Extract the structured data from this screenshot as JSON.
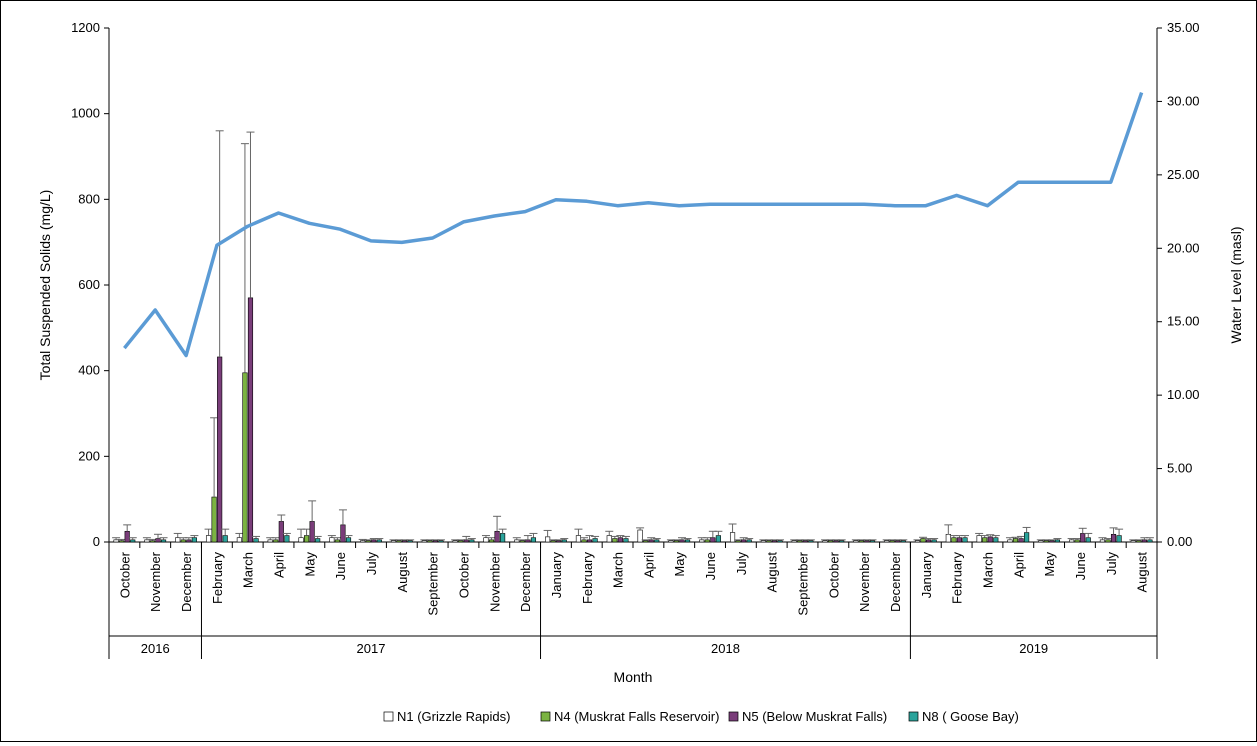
{
  "chart_data": {
    "type": "bar",
    "ylabel": "Total Suspended Solids (mg/L)",
    "y2label": "Water Level (masl)",
    "xlabel": "Month",
    "ylim": [
      0,
      1200
    ],
    "y2lim": [
      0,
      35
    ],
    "yticks": [
      "0",
      "200",
      "400",
      "600",
      "800",
      "1000",
      "1200"
    ],
    "y2ticks": [
      "0.00",
      "5.00",
      "10.00",
      "15.00",
      "20.00",
      "25.00",
      "30.00",
      "35.00"
    ],
    "categories": [
      "October",
      "November",
      "December",
      "February",
      "March",
      "April",
      "May",
      "June",
      "July",
      "August",
      "September",
      "October",
      "November",
      "December",
      "January",
      "February",
      "March",
      "April",
      "May",
      "June",
      "July",
      "August",
      "September",
      "October",
      "November",
      "December",
      "January",
      "February",
      "March",
      "April",
      "May",
      "June",
      "July",
      "August"
    ],
    "years": [
      {
        "label": "2016",
        "start": 0,
        "end": 2
      },
      {
        "label": "2017",
        "start": 3,
        "end": 13
      },
      {
        "label": "2018",
        "start": 14,
        "end": 25
      },
      {
        "label": "2019",
        "start": 26,
        "end": 33
      }
    ],
    "series": [
      {
        "name": "N1 (Grizzle Rapids)",
        "color": "#ffffff",
        "values": [
          5,
          5,
          10,
          15,
          10,
          5,
          10,
          10,
          3,
          3,
          3,
          3,
          10,
          5,
          12,
          15,
          15,
          28,
          3,
          5,
          22,
          3,
          3,
          3,
          3,
          3,
          3,
          18,
          15,
          5,
          3,
          5,
          5,
          3
        ],
        "errors": [
          5,
          5,
          10,
          15,
          10,
          5,
          20,
          5,
          3,
          2,
          2,
          2,
          5,
          5,
          15,
          15,
          10,
          5,
          2,
          5,
          20,
          2,
          2,
          2,
          2,
          2,
          2,
          22,
          5,
          5,
          2,
          3,
          5,
          2
        ]
      },
      {
        "name": "N4 (Muskrat Falls Reservoir)",
        "color": "#7bb342",
        "values": [
          3,
          3,
          5,
          105,
          395,
          5,
          15,
          5,
          3,
          3,
          3,
          3,
          5,
          3,
          3,
          5,
          8,
          3,
          3,
          5,
          3,
          3,
          3,
          3,
          3,
          3,
          8,
          10,
          10,
          8,
          3,
          5,
          5,
          3
        ],
        "errors": [
          3,
          3,
          5,
          185,
          535,
          5,
          15,
          5,
          2,
          2,
          2,
          2,
          5,
          2,
          2,
          5,
          5,
          2,
          2,
          5,
          2,
          2,
          2,
          2,
          2,
          2,
          3,
          5,
          5,
          3,
          2,
          3,
          3,
          2
        ]
      },
      {
        "name": "N5 (Below Muskrat Falls)",
        "color": "#7a3d7a",
        "values": [
          25,
          8,
          5,
          432,
          570,
          48,
          48,
          40,
          5,
          3,
          3,
          5,
          25,
          5,
          3,
          5,
          10,
          5,
          5,
          10,
          5,
          3,
          3,
          3,
          3,
          3,
          5,
          10,
          12,
          8,
          3,
          20,
          18,
          5
        ],
        "errors": [
          15,
          10,
          5,
          528,
          387,
          15,
          48,
          35,
          3,
          2,
          2,
          8,
          35,
          10,
          2,
          10,
          5,
          5,
          5,
          15,
          5,
          2,
          2,
          2,
          2,
          2,
          3,
          5,
          5,
          5,
          2,
          12,
          15,
          5
        ]
      },
      {
        "name": "N8 ( Goose Bay)",
        "color": "#2aa39b",
        "values": [
          5,
          5,
          10,
          15,
          8,
          15,
          8,
          10,
          5,
          3,
          3,
          5,
          20,
          10,
          5,
          8,
          8,
          5,
          5,
          15,
          5,
          3,
          3,
          3,
          3,
          3,
          5,
          10,
          10,
          22,
          5,
          10,
          15,
          5
        ],
        "errors": [
          5,
          5,
          5,
          15,
          5,
          5,
          5,
          5,
          3,
          2,
          2,
          3,
          10,
          10,
          3,
          5,
          5,
          3,
          3,
          10,
          3,
          2,
          2,
          2,
          2,
          2,
          3,
          5,
          5,
          12,
          3,
          10,
          15,
          5
        ]
      }
    ],
    "line": {
      "name": "Water Level",
      "color": "#5b9bd5",
      "axis": "right",
      "values": [
        13.2,
        15.8,
        12.7,
        20.2,
        21.5,
        22.4,
        21.7,
        21.3,
        20.5,
        20.4,
        20.7,
        21.8,
        22.2,
        22.5,
        23.3,
        23.2,
        22.9,
        23.1,
        22.9,
        23.0,
        23.0,
        23.0,
        23.0,
        23.0,
        23.0,
        22.9,
        22.9,
        23.6,
        22.9,
        24.5,
        24.5,
        24.5,
        24.5,
        30.6
      ]
    },
    "legend": "bottom",
    "grid": false
  }
}
